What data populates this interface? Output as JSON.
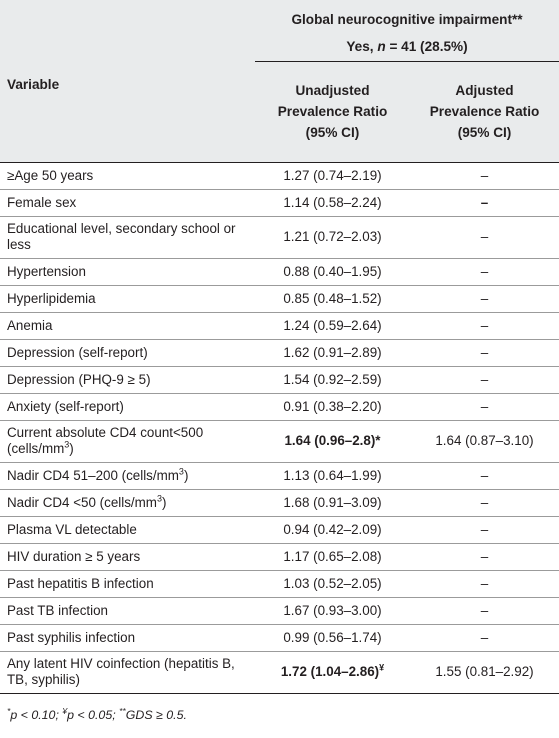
{
  "header": {
    "group_title": "Global neurocognitive impairment**",
    "group_subtitle_prefix": "Yes,",
    "group_subtitle_n": "n",
    "group_subtitle_rest": "= 41 (28.5%)",
    "variable_label": "Variable",
    "col_unadj": [
      "Unadjusted",
      "Prevalence Ratio",
      "(95% CI)"
    ],
    "col_adj": [
      "Adjusted",
      "Prevalence Ratio",
      "(95% CI)"
    ]
  },
  "rows": [
    {
      "variable": "≥Age 50 years",
      "unadjusted": "1.27 (0.74–2.19)",
      "adjusted": "–"
    },
    {
      "variable": "Female sex",
      "unadjusted": "1.14 (0.58–2.24)",
      "adjusted": "–"
    },
    {
      "variable": "Educational level, secondary school or less",
      "unadjusted": "1.21 (0.72–2.03)",
      "adjusted": "–"
    },
    {
      "variable": "Hypertension",
      "unadjusted": "0.88 (0.40–1.95)",
      "adjusted": "–"
    },
    {
      "variable": "Hyperlipidemia",
      "unadjusted": "0.85 (0.48–1.52)",
      "adjusted": "–"
    },
    {
      "variable": "Anemia",
      "unadjusted": "1.24 (0.59–2.64)",
      "adjusted": "–"
    },
    {
      "variable": "Depression (self-report)",
      "unadjusted": "1.62 (0.91–2.89)",
      "adjusted": "–"
    },
    {
      "variable": "Depression (PHQ-9 ≥ 5)",
      "unadjusted": "1.54 (0.92–2.59)",
      "adjusted": "–"
    },
    {
      "variable": "Anxiety (self-report)",
      "unadjusted": "0.91 (0.38–2.20)",
      "adjusted": "–"
    },
    {
      "variable": "Current absolute CD4 count<500 (cells/mm",
      "variable_sup": "3",
      "variable_after": ")",
      "unadjusted": "1.64 (0.96–2.8)",
      "unadjusted_mark": "*",
      "adjusted": "1.64 (0.87–3.10)"
    },
    {
      "variable": "Nadir CD4 51–200 (cells/mm",
      "variable_sup": "3",
      "variable_after": ")",
      "unadjusted": "1.13 (0.64–1.99)",
      "adjusted": "–"
    },
    {
      "variable": "Nadir CD4 <50 (cells/mm",
      "variable_sup": "3",
      "variable_after": ")",
      "unadjusted": "1.68 (0.91–3.09)",
      "adjusted": "–"
    },
    {
      "variable": "Plasma VL detectable",
      "unadjusted": "0.94 (0.42–2.09)",
      "adjusted": "–"
    },
    {
      "variable": "HIV duration ≥ 5 years",
      "unadjusted": "1.17 (0.65–2.08)",
      "adjusted": "–"
    },
    {
      "variable": "Past hepatitis B infection",
      "unadjusted": "1.03 (0.52–2.05)",
      "adjusted": "–"
    },
    {
      "variable": "Past TB infection",
      "unadjusted": "1.67 (0.93–3.00)",
      "adjusted": "–"
    },
    {
      "variable": "Past syphilis infection",
      "unadjusted": "0.99 (0.56–1.74)",
      "adjusted": "–"
    },
    {
      "variable": "Any latent HIV coinfection (hepatitis B, TB, syphilis)",
      "unadjusted": "1.72 (1.04–2.86)",
      "unadjusted_mark": "¥",
      "adjusted": "1.55 (0.81–2.92)"
    }
  ],
  "footnote": {
    "p1_mark": "*",
    "p1_text": "p < 0.10;",
    "p2_mark": "¥",
    "p2_text": "p < 0.05;",
    "p3_mark": "**",
    "p3_text": "GDS ≥ 0.5."
  }
}
